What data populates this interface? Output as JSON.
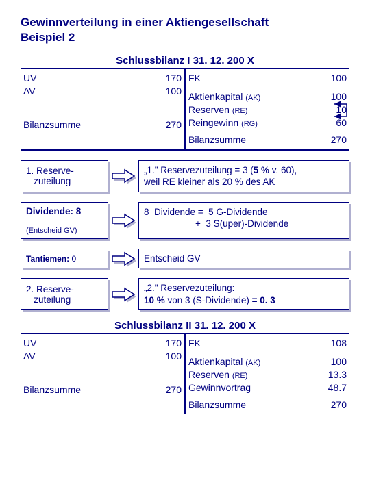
{
  "colors": {
    "primary": "#000080",
    "shadow": "#b0b0d0",
    "bg": "#ffffff"
  },
  "title_line1": "Gewinnverteilung in einer Aktiengesellschaft",
  "title_line2": "Beispiel 2",
  "balance1": {
    "heading": "Schlussbilanz I  31. 12. 200 X",
    "left": [
      {
        "label": "UV",
        "val": "170"
      },
      {
        "label": "AV",
        "val": "100"
      }
    ],
    "left_sum": {
      "label": "Bilanzsumme",
      "val": "270"
    },
    "right": [
      {
        "label": "FK",
        "val": "100"
      },
      {
        "label": "Aktienkapital",
        "suffix": "(AK)",
        "val": "100"
      },
      {
        "label": "Reserven",
        "suffix": "(RE)",
        "val": "10"
      },
      {
        "label": "Reingewinn",
        "suffix": "(RG)",
        "val": "60"
      }
    ],
    "right_sum": {
      "label": "Bilanzsumme",
      "val": "270"
    }
  },
  "steps": [
    {
      "left_html": "1. Reserve-<br>&nbsp;&nbsp;&nbsp;zuteilung",
      "right_html": "„1.\" Reservezuteilung = 3 (<b>5 %</b> v. 60),<br>weil RE kleiner als 20 % des AK"
    },
    {
      "left_html": "<b>Dividende: 8</b><br><span style='font-size:11px'>(Entscheid GV)</span>",
      "right_html": "8&nbsp;&nbsp;Dividende =&nbsp;&nbsp;5 G-Dividende<br>&nbsp;&nbsp;&nbsp;&nbsp;&nbsp;&nbsp;&nbsp;&nbsp;&nbsp;&nbsp;&nbsp;&nbsp;&nbsp;&nbsp;&nbsp;&nbsp;&nbsp;&nbsp;&nbsp;&nbsp;+&nbsp;&nbsp;3 S(uper)-Dividende"
    },
    {
      "left_html": "<span style='font-size:12px'><b>Tantiemen:</b> 0</span>",
      "right_html": "Entscheid GV",
      "thin": true
    },
    {
      "left_html": "2. Reserve-<br>&nbsp;&nbsp;&nbsp;zuteilung",
      "right_html": "„2.\" Reservezuteilung:<br><b>10 %</b> von 3 (S-Dividende) <b>= 0. 3</b>"
    }
  ],
  "balance2": {
    "heading": "Schlussbilanz II  31. 12. 200 X",
    "left": [
      {
        "label": "UV",
        "val": "170"
      },
      {
        "label": "AV",
        "val": "100"
      }
    ],
    "left_sum": {
      "label": "Bilanzsumme",
      "val": "270"
    },
    "right": [
      {
        "label": "FK",
        "val": "108"
      },
      {
        "label": "Aktienkapital",
        "suffix": "(AK)",
        "val": "100"
      },
      {
        "label": "Reserven",
        "suffix": "(RE)",
        "val": "13.3"
      },
      {
        "label": "Gewinnvortrag",
        "suffix": "",
        "val": "48.7"
      }
    ],
    "right_sum": {
      "label": "Bilanzsumme",
      "val": "270"
    }
  },
  "arrows": {
    "step_arrow": {
      "type": "block-right",
      "fill": "#ffffff",
      "stroke": "#000080",
      "stroke_width": 1.5,
      "shadow": "#b0b0d0"
    },
    "pointer_arrows": {
      "stroke": "#000080",
      "stroke_width": 1.5,
      "head": "triangle"
    }
  }
}
